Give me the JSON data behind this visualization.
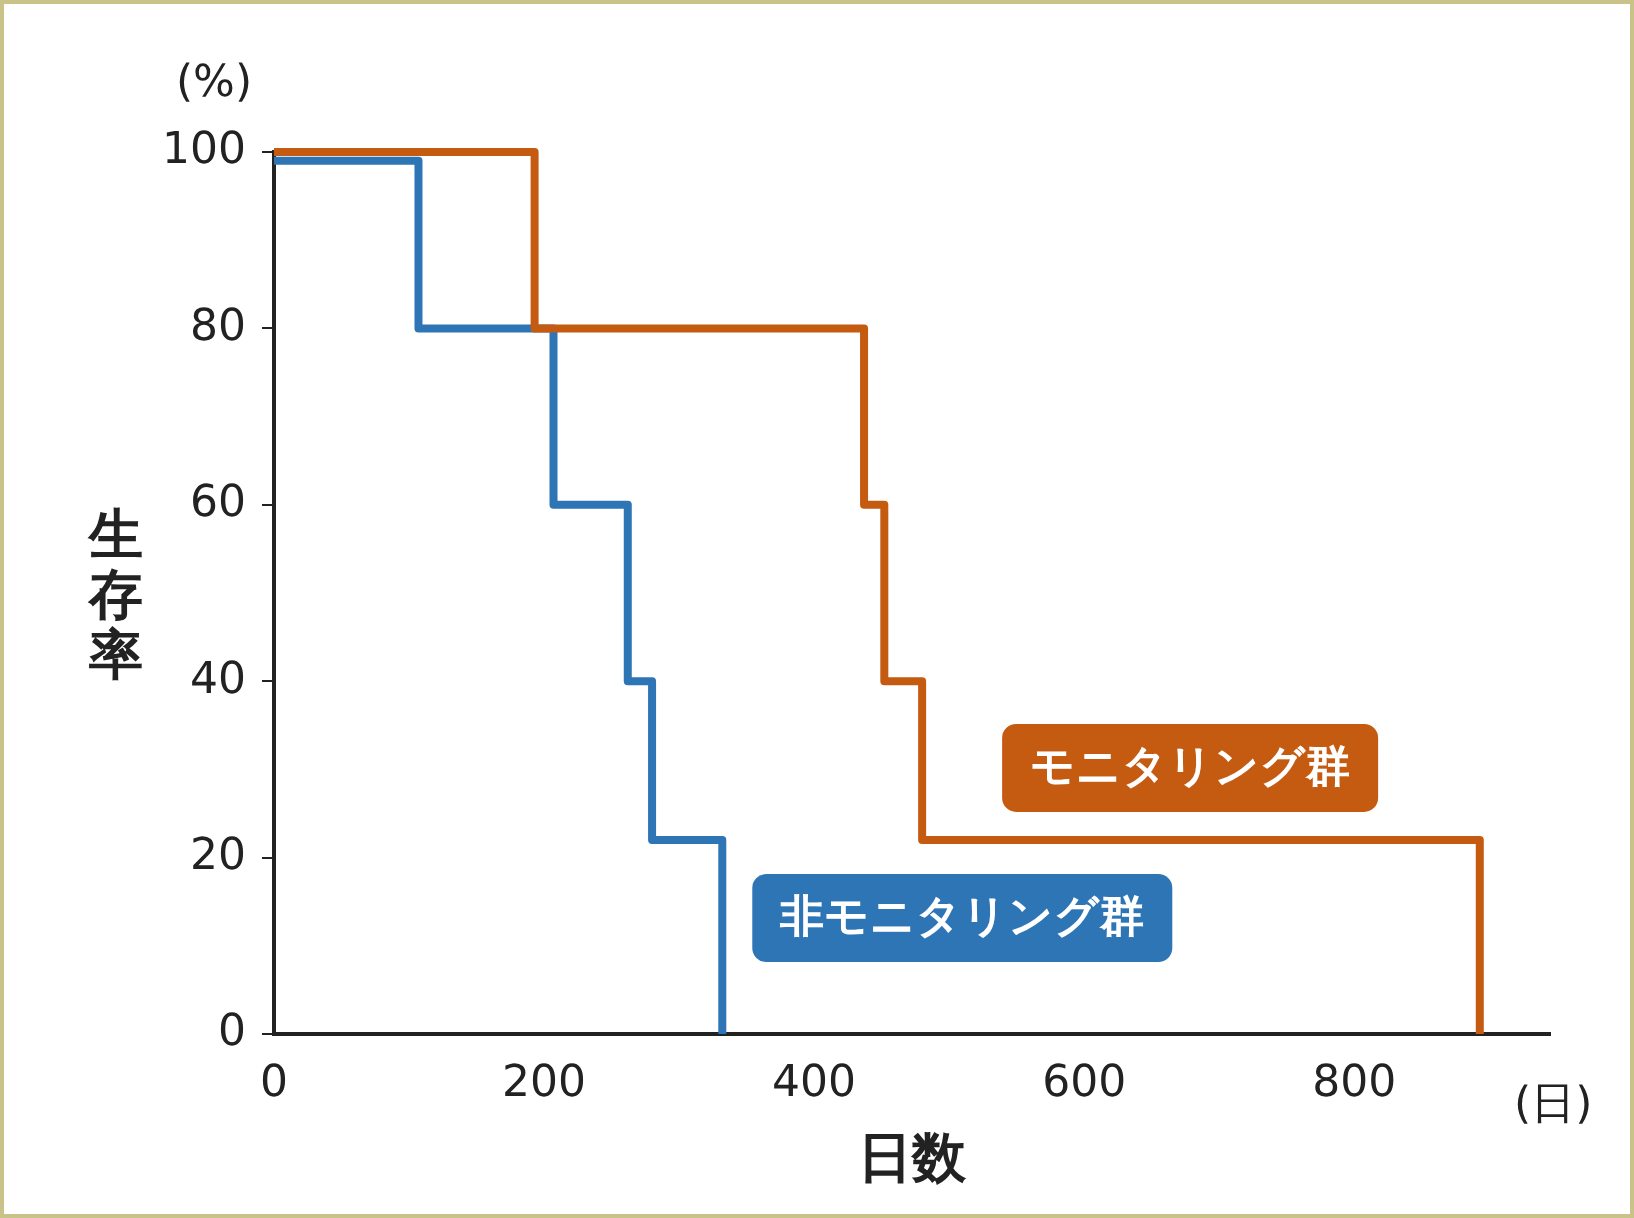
{
  "chart_data": {
    "type": "step",
    "xlabel": "日数",
    "ylabel": "生存率",
    "annotations": [
      "(%)",
      "(日)"
    ],
    "xlim": [
      0,
      945
    ],
    "xticks": [
      0,
      200,
      400,
      600,
      800
    ],
    "ylim": [
      0,
      100
    ],
    "yticks": [
      0,
      20,
      40,
      60,
      80,
      100
    ],
    "grid": false,
    "legend": false,
    "marker": "none",
    "line_style": "solid",
    "series": [
      {
        "name": "モニタリング群",
        "color": "#c55a11",
        "x": [
          0,
          193,
          437,
          452,
          480,
          893
        ],
        "values": [
          100,
          80,
          60,
          40,
          22,
          0
        ]
      },
      {
        "name": "非モニタリング群",
        "color": "#2e75b6",
        "x": [
          0,
          107,
          207,
          262,
          280,
          332
        ],
        "values": [
          99,
          80,
          60,
          40,
          22,
          0
        ]
      }
    ]
  }
}
